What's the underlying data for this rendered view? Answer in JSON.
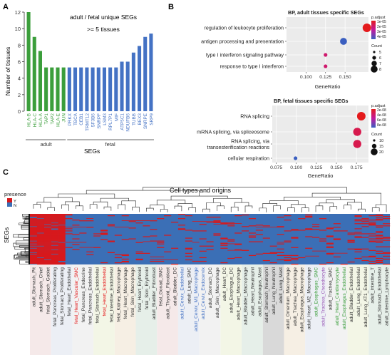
{
  "panels": {
    "a": "A",
    "b": "B",
    "c": "C"
  },
  "colors": {
    "green": "#3b9e3b",
    "blue": "#4472c4",
    "red": "#e41a1c",
    "heat_blue": "#3b6fb6",
    "heat_red": "#d7191c"
  },
  "chart_data": [
    {
      "type": "bar",
      "panel": "A",
      "title": "adult / fetal unique SEGs",
      "subtitle": ">= 5 tissues",
      "ylabel": "Number of tissues",
      "xlabel": "SEGs",
      "ylim": [
        0,
        12
      ],
      "yticks": [
        0,
        2,
        4,
        6,
        8,
        10,
        12
      ],
      "group_labels": [
        "adult",
        "fetal"
      ],
      "categories": [
        "HLA-B",
        "HLA-C",
        "HLA-A",
        "TAP1",
        "TAP2",
        "HLA-E",
        "JUN",
        "PRKX",
        "TBCA",
        "CEB1",
        "TRMT12",
        "SF3B6",
        "SNRPF",
        "LSM3",
        "RPL7P1",
        "MIF",
        "ATP5C1",
        "NDUFB6",
        "TUBB",
        "BEX3",
        "SNRPE",
        "SRP9"
      ],
      "values": [
        12,
        9,
        7.3,
        5.3,
        5.3,
        5.3,
        5.3,
        5.3,
        5.3,
        5.3,
        5.3,
        5.3,
        5.3,
        5.3,
        5.3,
        5.3,
        6,
        6,
        7.1,
        7.9,
        9,
        9.4
      ],
      "groups": [
        "adult",
        "adult",
        "adult",
        "adult",
        "adult",
        "adult",
        "adult",
        "fetal",
        "fetal",
        "fetal",
        "fetal",
        "fetal",
        "fetal",
        "fetal",
        "fetal",
        "fetal",
        "fetal",
        "fetal",
        "fetal",
        "fetal",
        "fetal",
        "fetal"
      ]
    },
    {
      "type": "scatter",
      "panel": "B",
      "title": "BP, adult tissues specific SEGs",
      "xlabel": "GeneRatio",
      "xlim": [
        0.075,
        0.18
      ],
      "xticks": [
        "0.100",
        "0.125",
        "0.150"
      ],
      "legend_color_title": "p.adjust",
      "legend_color_ticks": [
        "1e-05",
        "2e-05",
        "3e-05",
        "4e-05"
      ],
      "legend_size_title": "Count",
      "legend_size_ticks": [
        "5",
        "6",
        "7",
        "8"
      ],
      "categories": [
        "regulation of leukocyte proliferation",
        "antigen processing and presentation",
        "type I interferon signaling pathway",
        "response to type I interferon"
      ],
      "x": [
        0.178,
        0.148,
        0.125,
        0.125
      ],
      "count": [
        8,
        7,
        5,
        5
      ],
      "p_adjust": [
        1e-05,
        4.2e-05,
        2e-05,
        2e-05
      ]
    },
    {
      "type": "scatter",
      "panel": "B",
      "title": "BP, fetal tissues specific SEGs",
      "xlabel": "GeneRatio",
      "xlim": [
        0.07,
        0.19
      ],
      "xticks": [
        "0.075",
        "0.100",
        "0.125",
        "0.150",
        "0.175"
      ],
      "legend_color_title": "p.adjust",
      "legend_color_ticks": [
        "2e-08",
        "4e-08",
        "6e-08",
        "8e-08"
      ],
      "legend_size_title": "Count",
      "legend_size_ticks": [
        "10",
        "15",
        "20"
      ],
      "categories": [
        "RNA splicing",
        "mRNA splicing, via spliceosome",
        "RNA splicing, via transesterification reactions",
        "cellular respiration"
      ],
      "category_lines": [
        [
          "RNA splicing"
        ],
        [
          "mRNA splicing, via spliceosome"
        ],
        [
          "RNA splicing, via",
          "transesterification reactions"
        ],
        [
          "cellular respiration"
        ]
      ],
      "x": [
        0.181,
        0.176,
        0.176,
        0.099
      ],
      "count": [
        21,
        20,
        20,
        10
      ],
      "p_adjust": [
        1e-08,
        2.5e-08,
        2.5e-08,
        9e-08
      ]
    },
    {
      "type": "heatmap",
      "panel": "C",
      "title": "Cell types and origins",
      "ylabel": "SEGs",
      "legend_title": "presence",
      "legend_values": [
        "Y",
        "N"
      ],
      "columns": [
        "adult_Stomach_Pit",
        "adult_Stomach_Chief",
        "fetal_Stomach_Goblet",
        "fetal_Pancreas_Proliferating",
        "fetal_Stomach_Proliferating",
        "fetal_Heart_Endothelial",
        "fetal_Heart_Vascular_SMC",
        "fetal_Pancreas_Endocrine",
        "fetal_Pancreas_Endothelial",
        "fetal_Stomach_Endothelial",
        "fetal_Heart_Endothelial",
        "fetal_Intestine_Endothelial",
        "fetal_Kidney_Macrophage",
        "fetal_Heart_Macrophage",
        "fetal_Skin_Macrophage",
        "fetal_Heart_Erythroid",
        "fetal_Skin_Erythroid",
        "adult_Bladder_Fibroblast",
        "fetal_Gonad_SMC",
        "adult_Thyroid_Fibroblast",
        "adult_Bladder_DC",
        "adult_Cervix_Endothelial",
        "adult_Lung_SMC",
        "adult_Cervix_M1_Macrophage",
        "adult_Cervix_Endocervix",
        "adult_Stomach_DC",
        "adult_Skin_Macrophage",
        "adult_Heart_DC",
        "adult_Esophagus_DC",
        "adult_Heart_Macrophage",
        "adult_Bladder_Macrophage",
        "adult_Heart_Neutrophil",
        "adult_Esophagus_Mast",
        "adult_Stomach_Neutrophil",
        "adult_Lung_Neutrophil",
        "adult_Lung_Mast",
        "adult_Omentum_Macrophage",
        "adult_Trachea_Macrophage",
        "adult_Esophagus_Macrophage",
        "adult_Heart_M2_Macrophage",
        "adult_Esophagus_SMC",
        "adult_Trachea_Chondrocyte",
        "adult_Trachea_SMC",
        "adult_Heart_Cardiomyocyte",
        "adult_Esophagus_Endothelial",
        "adult_Bladder_Endothelial",
        "adult_Lung_Endothelial",
        "adult_Lung_AT1_Endothelial",
        "adult_Intestine_T",
        "adult_Stomach_Endothelial",
        "adult_Intestine_Lymphocyte"
      ],
      "column_colors": [
        "#333333",
        "#333333",
        "#333333",
        "#333333",
        "#333333",
        "#333333",
        "#e41a1c",
        "#333333",
        "#333333",
        "#333333",
        "#e41a1c",
        "#333333",
        "#333333",
        "#333333",
        "#333333",
        "#333333",
        "#333333",
        "#333333",
        "#333333",
        "#333333",
        "#333333",
        "#4472c4",
        "#333333",
        "#4472c4",
        "#4472c4",
        "#333333",
        "#333333",
        "#333333",
        "#333333",
        "#333333",
        "#333333",
        "#333333",
        "#333333",
        "#333333",
        "#333333",
        "#333333",
        "#333333",
        "#333333",
        "#333333",
        "#333333",
        "#3b9e3b",
        "#9b59b6",
        "#333333",
        "#3b9e3b",
        "#3b9e3b",
        "#333333",
        "#333333",
        "#333333",
        "#333333",
        "#333333",
        "#333333"
      ],
      "background_bands": [
        "#f5e9e9",
        "#eceff5",
        "#f2f2f2",
        "#f3f6e6",
        "#f6efe4",
        "#e6efe9",
        "#f5e9e9",
        "#eceff5",
        "#f2f2f2",
        "#f3f6e6",
        "#e6efe9",
        "#d9d9d9",
        "#f6efe4",
        "#eceff5",
        "#f2f2f2",
        "#f3f6e6",
        "#e6efe9"
      ]
    }
  ]
}
